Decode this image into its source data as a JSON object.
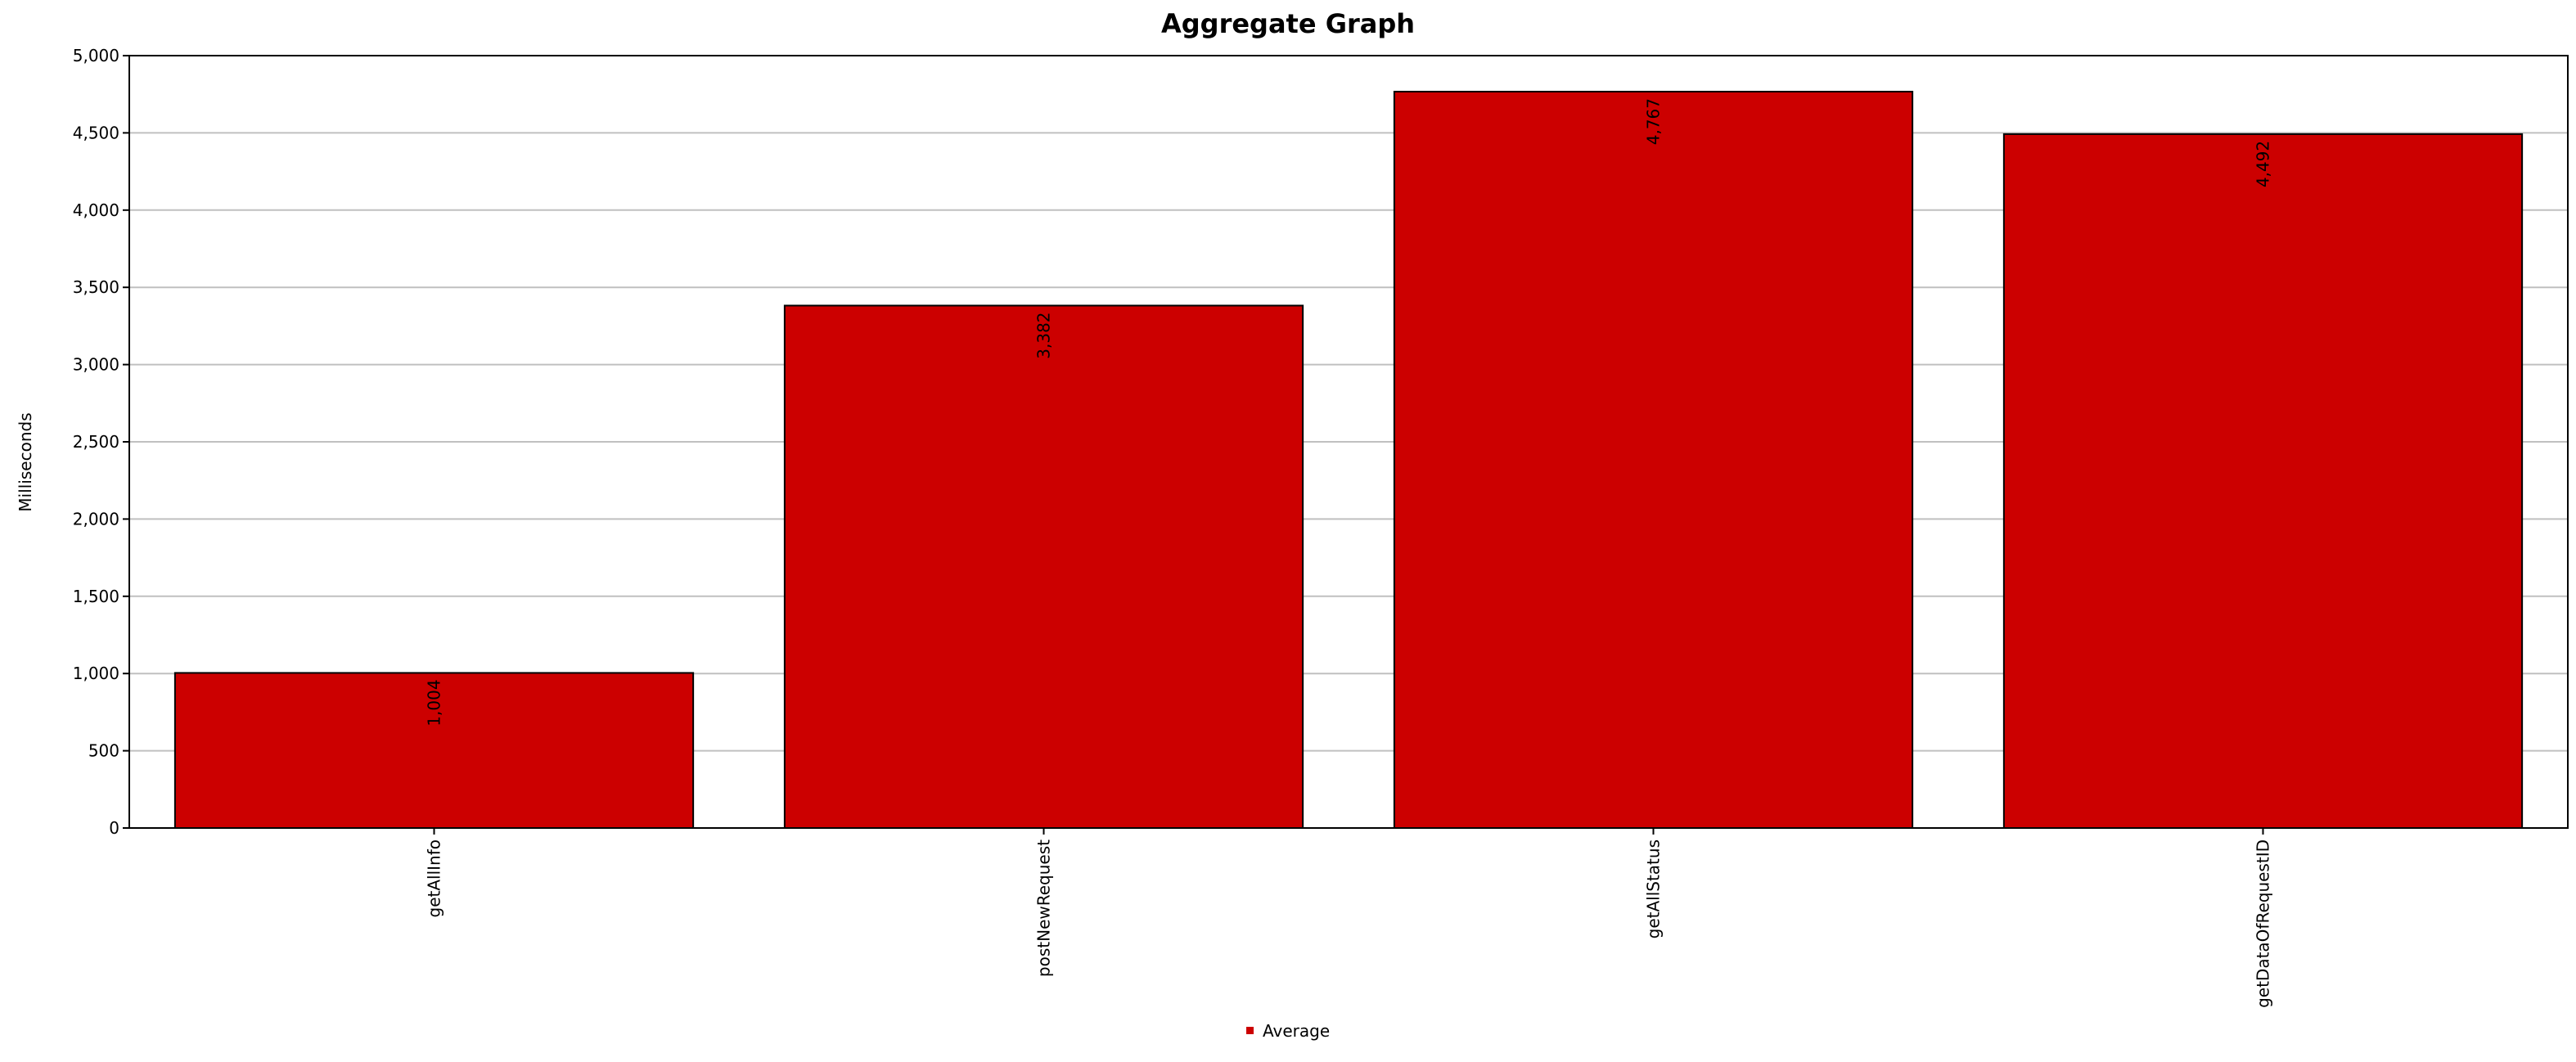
{
  "chart_data": {
    "type": "bar",
    "title": "Aggregate Graph",
    "xlabel": "",
    "ylabel": "Milliseconds",
    "ylim": [
      0,
      5000
    ],
    "yticks": [
      0,
      500,
      1000,
      1500,
      2000,
      2500,
      3000,
      3500,
      4000,
      4500,
      5000
    ],
    "ytick_labels": [
      "0",
      "500",
      "1,000",
      "1,500",
      "2,000",
      "2,500",
      "3,000",
      "3,500",
      "4,000",
      "4,500",
      "5,000"
    ],
    "categories": [
      "getAllInfo",
      "postNewRequest",
      "getAllStatus",
      "getDataOfRequestID"
    ],
    "series": [
      {
        "name": "Average",
        "values": [
          1004,
          3382,
          4767,
          4492
        ],
        "value_labels": [
          "1,004",
          "3,382",
          "4,767",
          "4,492"
        ]
      }
    ],
    "grid": true,
    "legend": "bottom-center",
    "colors": {
      "bar": "#cc0000",
      "bar_outline": "#000000",
      "grid": "#c0c0c0"
    }
  }
}
